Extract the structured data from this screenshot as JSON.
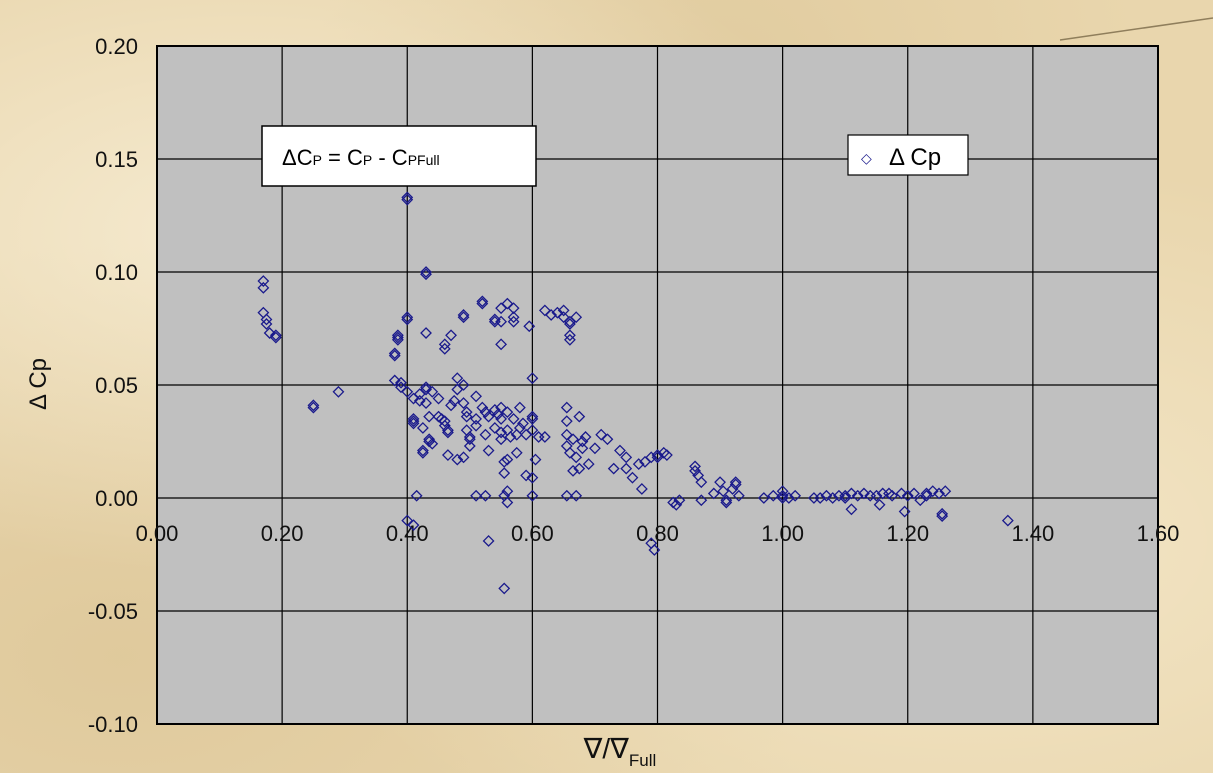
{
  "chart_data": {
    "type": "scatter",
    "title": "",
    "xlabel": "∇/∇",
    "xlabel_sub": "Full",
    "ylabel": "Δ Cp",
    "xlim": [
      0.0,
      1.6
    ],
    "ylim": [
      -0.1,
      0.2
    ],
    "x_ticks": [
      "0.00",
      "0.20",
      "0.40",
      "0.60",
      "0.80",
      "1.00",
      "1.20",
      "1.40",
      "1.60"
    ],
    "y_ticks": [
      "0.20",
      "0.15",
      "0.10",
      "0.05",
      "0.00",
      "-0.05",
      "-0.10"
    ],
    "grid": true,
    "legend": {
      "position": "top-right",
      "symbol": "◇",
      "label": "Δ Cp"
    },
    "annotation": {
      "lhs": "ΔC",
      "lhs_sub": "P",
      "eq": " = C",
      "rhs_sub": "P",
      "minus": " - C",
      "rhs2_sub": "PFull"
    },
    "colors": {
      "plot_bg": "#c0c0c0",
      "grid": "#000000",
      "marker": "#1a1a8c"
    },
    "series": [
      {
        "name": "Δ Cp",
        "points": [
          [
            0.17,
            0.096
          ],
          [
            0.17,
            0.093
          ],
          [
            0.17,
            0.082
          ],
          [
            0.175,
            0.079
          ],
          [
            0.175,
            0.077
          ],
          [
            0.18,
            0.073
          ],
          [
            0.19,
            0.072
          ],
          [
            0.19,
            0.071
          ],
          [
            0.25,
            0.04
          ],
          [
            0.25,
            0.041
          ],
          [
            0.29,
            0.047
          ],
          [
            0.38,
            0.064
          ],
          [
            0.38,
            0.063
          ],
          [
            0.38,
            0.052
          ],
          [
            0.385,
            0.07
          ],
          [
            0.385,
            0.071
          ],
          [
            0.385,
            0.072
          ],
          [
            0.39,
            0.051
          ],
          [
            0.39,
            0.049
          ],
          [
            0.4,
            0.133
          ],
          [
            0.4,
            0.132
          ],
          [
            0.4,
            0.08
          ],
          [
            0.4,
            0.079
          ],
          [
            0.4,
            0.047
          ],
          [
            0.41,
            0.044
          ],
          [
            0.41,
            0.035
          ],
          [
            0.41,
            0.034
          ],
          [
            0.41,
            0.033
          ],
          [
            0.41,
            -0.012
          ],
          [
            0.4,
            -0.01
          ],
          [
            0.415,
            0.001
          ],
          [
            0.42,
            0.046
          ],
          [
            0.42,
            0.043
          ],
          [
            0.425,
            0.031
          ],
          [
            0.425,
            0.021
          ],
          [
            0.425,
            0.02
          ],
          [
            0.43,
            0.099
          ],
          [
            0.43,
            0.1
          ],
          [
            0.43,
            0.073
          ],
          [
            0.43,
            0.049
          ],
          [
            0.43,
            0.048
          ],
          [
            0.43,
            0.042
          ],
          [
            0.435,
            0.036
          ],
          [
            0.435,
            0.026
          ],
          [
            0.435,
            0.025
          ],
          [
            0.44,
            0.024
          ],
          [
            0.44,
            0.047
          ],
          [
            0.45,
            0.044
          ],
          [
            0.45,
            0.036
          ],
          [
            0.455,
            0.035
          ],
          [
            0.46,
            0.068
          ],
          [
            0.46,
            0.066
          ],
          [
            0.46,
            0.034
          ],
          [
            0.46,
            0.032
          ],
          [
            0.465,
            0.03
          ],
          [
            0.465,
            0.029
          ],
          [
            0.465,
            0.019
          ],
          [
            0.47,
            0.041
          ],
          [
            0.47,
            0.072
          ],
          [
            0.475,
            0.043
          ],
          [
            0.48,
            0.053
          ],
          [
            0.48,
            0.017
          ],
          [
            0.48,
            0.048
          ],
          [
            0.49,
            0.081
          ],
          [
            0.49,
            0.08
          ],
          [
            0.49,
            0.05
          ],
          [
            0.49,
            0.042
          ],
          [
            0.49,
            0.018
          ],
          [
            0.495,
            0.038
          ],
          [
            0.495,
            0.036
          ],
          [
            0.495,
            0.03
          ],
          [
            0.5,
            0.027
          ],
          [
            0.5,
            0.026
          ],
          [
            0.5,
            0.023
          ],
          [
            0.51,
            0.035
          ],
          [
            0.51,
            0.032
          ],
          [
            0.51,
            0.001
          ],
          [
            0.51,
            0.045
          ],
          [
            0.52,
            0.087
          ],
          [
            0.52,
            0.086
          ],
          [
            0.52,
            0.04
          ],
          [
            0.525,
            0.038
          ],
          [
            0.525,
            0.028
          ],
          [
            0.525,
            0.001
          ],
          [
            0.53,
            0.036
          ],
          [
            0.53,
            0.021
          ],
          [
            0.53,
            -0.019
          ],
          [
            0.54,
            0.079
          ],
          [
            0.54,
            0.078
          ],
          [
            0.54,
            0.039
          ],
          [
            0.54,
            0.031
          ],
          [
            0.545,
            0.037
          ],
          [
            0.55,
            0.084
          ],
          [
            0.55,
            0.078
          ],
          [
            0.55,
            0.068
          ],
          [
            0.55,
            0.04
          ],
          [
            0.55,
            0.035
          ],
          [
            0.55,
            0.029
          ],
          [
            0.55,
            0.026
          ],
          [
            0.555,
            0.016
          ],
          [
            0.555,
            0.011
          ],
          [
            0.555,
            0.001
          ],
          [
            0.555,
            -0.04
          ],
          [
            0.56,
            0.086
          ],
          [
            0.56,
            0.038
          ],
          [
            0.56,
            0.03
          ],
          [
            0.56,
            0.017
          ],
          [
            0.56,
            0.003
          ],
          [
            0.56,
            -0.002
          ],
          [
            0.565,
            0.027
          ],
          [
            0.57,
            0.084
          ],
          [
            0.57,
            0.08
          ],
          [
            0.57,
            0.078
          ],
          [
            0.57,
            0.035
          ],
          [
            0.575,
            0.028
          ],
          [
            0.575,
            0.02
          ],
          [
            0.58,
            0.04
          ],
          [
            0.58,
            0.031
          ],
          [
            0.585,
            0.033
          ],
          [
            0.59,
            0.028
          ],
          [
            0.59,
            0.01
          ],
          [
            0.595,
            0.076
          ],
          [
            0.6,
            0.053
          ],
          [
            0.6,
            0.036
          ],
          [
            0.6,
            0.035
          ],
          [
            0.6,
            0.03
          ],
          [
            0.6,
            0.009
          ],
          [
            0.6,
            0.001
          ],
          [
            0.605,
            0.017
          ],
          [
            0.61,
            0.027
          ],
          [
            0.62,
            0.083
          ],
          [
            0.62,
            0.027
          ],
          [
            0.63,
            0.081
          ],
          [
            0.64,
            0.082
          ],
          [
            0.65,
            0.083
          ],
          [
            0.65,
            0.08
          ],
          [
            0.655,
            0.04
          ],
          [
            0.655,
            0.034
          ],
          [
            0.655,
            0.028
          ],
          [
            0.655,
            0.023
          ],
          [
            0.655,
            0.001
          ],
          [
            0.66,
            0.078
          ],
          [
            0.66,
            0.077
          ],
          [
            0.66,
            0.072
          ],
          [
            0.66,
            0.07
          ],
          [
            0.66,
            0.02
          ],
          [
            0.665,
            0.026
          ],
          [
            0.665,
            0.012
          ],
          [
            0.67,
            0.08
          ],
          [
            0.67,
            0.018
          ],
          [
            0.67,
            0.001
          ],
          [
            0.675,
            0.036
          ],
          [
            0.675,
            0.013
          ],
          [
            0.68,
            0.025
          ],
          [
            0.68,
            0.022
          ],
          [
            0.685,
            0.027
          ],
          [
            0.69,
            0.015
          ],
          [
            0.7,
            0.022
          ],
          [
            0.71,
            0.028
          ],
          [
            0.72,
            0.026
          ],
          [
            0.73,
            0.013
          ],
          [
            0.74,
            0.021
          ],
          [
            0.75,
            0.018
          ],
          [
            0.75,
            0.013
          ],
          [
            0.76,
            0.009
          ],
          [
            0.77,
            0.015
          ],
          [
            0.775,
            0.004
          ],
          [
            0.78,
            0.016
          ],
          [
            0.79,
            0.018
          ],
          [
            0.79,
            -0.02
          ],
          [
            0.795,
            -0.023
          ],
          [
            0.8,
            0.019
          ],
          [
            0.8,
            0.018
          ],
          [
            0.81,
            0.02
          ],
          [
            0.815,
            0.019
          ],
          [
            0.825,
            -0.002
          ],
          [
            0.83,
            -0.003
          ],
          [
            0.835,
            -0.001
          ],
          [
            0.86,
            0.014
          ],
          [
            0.86,
            0.012
          ],
          [
            0.865,
            0.01
          ],
          [
            0.87,
            0.007
          ],
          [
            0.87,
            -0.001
          ],
          [
            0.89,
            0.002
          ],
          [
            0.9,
            0.007
          ],
          [
            0.905,
            0.003
          ],
          [
            0.91,
            -0.001
          ],
          [
            0.91,
            -0.002
          ],
          [
            0.92,
            0.004
          ],
          [
            0.925,
            0.007
          ],
          [
            0.925,
            0.006
          ],
          [
            0.93,
            0.001
          ],
          [
            0.97,
            0.0
          ],
          [
            0.985,
            0.001
          ],
          [
            1.0,
            0.003
          ],
          [
            1.0,
            0.001
          ],
          [
            1.0,
            0.0
          ],
          [
            1.01,
            0.0
          ],
          [
            1.02,
            0.001
          ],
          [
            1.05,
            0.0
          ],
          [
            1.06,
            0.0
          ],
          [
            1.07,
            0.001
          ],
          [
            1.08,
            0.0
          ],
          [
            1.09,
            0.001
          ],
          [
            1.1,
            0.001
          ],
          [
            1.1,
            0.0
          ],
          [
            1.11,
            -0.005
          ],
          [
            1.11,
            0.002
          ],
          [
            1.12,
            0.001
          ],
          [
            1.13,
            0.002
          ],
          [
            1.14,
            0.001
          ],
          [
            1.15,
            0.001
          ],
          [
            1.155,
            -0.003
          ],
          [
            1.16,
            0.002
          ],
          [
            1.17,
            0.002
          ],
          [
            1.175,
            0.001
          ],
          [
            1.19,
            0.002
          ],
          [
            1.195,
            -0.006
          ],
          [
            1.2,
            0.001
          ],
          [
            1.21,
            0.002
          ],
          [
            1.22,
            -0.001
          ],
          [
            1.23,
            0.001
          ],
          [
            1.23,
            0.002
          ],
          [
            1.24,
            0.003
          ],
          [
            1.25,
            0.002
          ],
          [
            1.26,
            0.003
          ],
          [
            1.255,
            -0.008
          ],
          [
            1.255,
            -0.007
          ],
          [
            1.36,
            -0.01
          ]
        ]
      }
    ]
  }
}
